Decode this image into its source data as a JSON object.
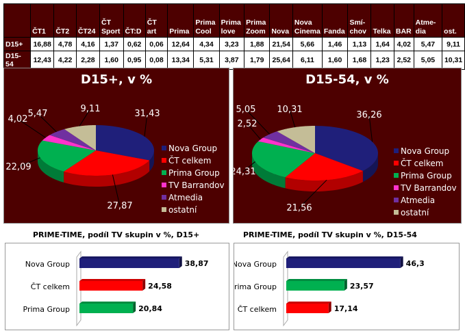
{
  "table": {
    "columns": [
      "ČT1",
      "ČT2",
      "ČT24",
      "ČT Sport",
      "ČT:D",
      "ČT art",
      "Prima",
      "Prima Cool",
      "Prima love",
      "Prima Zoom",
      "Nova",
      "Nova Cinema",
      "Fanda",
      "Smí-chov",
      "Telka",
      "BAR",
      "Atme-dia",
      "ost."
    ],
    "rows": [
      {
        "label": "D15+",
        "values": [
          "16,88",
          "4,78",
          "4,16",
          "1,37",
          "0,62",
          "0,06",
          "12,64",
          "4,34",
          "3,23",
          "1,88",
          "21,54",
          "5,66",
          "1,46",
          "1,13",
          "1,64",
          "4,02",
          "5,47",
          "9,11"
        ]
      },
      {
        "label": "D15-54",
        "values": [
          "12,43",
          "4,22",
          "2,28",
          "1,60",
          "0,95",
          "0,08",
          "13,34",
          "5,31",
          "3,87",
          "1,79",
          "25,64",
          "6,11",
          "1,60",
          "1,68",
          "1,23",
          "2,52",
          "5,05",
          "10,31"
        ]
      }
    ]
  },
  "chart_data": [
    {
      "type": "pie",
      "title": "D15+, v %",
      "categories": [
        "Nova Group",
        "ČT celkem",
        "Prima Group",
        "TV Barrandov",
        "Atmedia",
        "ostatní"
      ],
      "values": [
        31.43,
        27.87,
        22.09,
        4.02,
        5.47,
        9.11
      ],
      "labels": [
        "31,43",
        "27,87",
        "22,09",
        "4,02",
        "5,47",
        "9,11"
      ],
      "colors": [
        "#1f1f7a",
        "#ff0000",
        "#00b050",
        "#ff33cc",
        "#7030a0",
        "#c4bd97"
      ],
      "legend": "right"
    },
    {
      "type": "pie",
      "title": "D15-54, v %",
      "categories": [
        "Nova Group",
        "ČT celkem",
        "Prima Group",
        "TV Barrandov",
        "Atmedia",
        "ostatní"
      ],
      "values": [
        36.26,
        21.56,
        24.31,
        2.52,
        5.05,
        10.31
      ],
      "labels": [
        "36,26",
        "21,56",
        "24,31",
        "2,52",
        "5,05",
        "10,31"
      ],
      "colors": [
        "#1f1f7a",
        "#ff0000",
        "#00b050",
        "#ff33cc",
        "#7030a0",
        "#c4bd97"
      ],
      "legend": "right"
    },
    {
      "type": "bar",
      "title": "PRIME-TIME, podíl TV skupin v %, D15+",
      "categories": [
        "Nova Group",
        "ČT celkem",
        "Prima Group"
      ],
      "values": [
        38.87,
        24.58,
        20.84
      ],
      "labels": [
        "38,87",
        "24,58",
        "20,84"
      ],
      "colors": [
        "#1f1f7a",
        "#ff0000",
        "#00b050"
      ]
    },
    {
      "type": "bar",
      "title": "PRIME-TIME, podíl TV skupin v %, D15-54",
      "categories": [
        "Nova Group",
        "Prima Group",
        "ČT celkem"
      ],
      "values": [
        46.3,
        23.57,
        17.14
      ],
      "labels": [
        "46,3",
        "23,57",
        "17,14"
      ],
      "colors": [
        "#1f1f7a",
        "#00b050",
        "#ff0000"
      ]
    }
  ]
}
